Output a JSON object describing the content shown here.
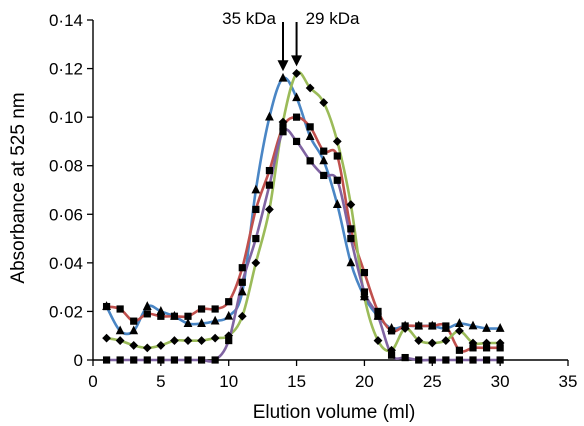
{
  "chart_data": {
    "type": "line",
    "xlabel": "Elution volume (ml)",
    "ylabel": "Absorbance at 525 nm",
    "xlim": [
      0,
      35
    ],
    "ylim": [
      0,
      0.14
    ],
    "x_ticks": [
      0,
      5,
      10,
      15,
      20,
      25,
      30,
      35
    ],
    "x_tick_labels": [
      "0",
      "5",
      "10",
      "15",
      "20",
      "25",
      "30",
      "35"
    ],
    "y_ticks": [
      0,
      0.02,
      0.04,
      0.06,
      0.08,
      0.1,
      0.12,
      0.14
    ],
    "y_tick_labels": [
      "0",
      "0·02",
      "0·04",
      "0·06",
      "0·08",
      "0·10",
      "0·12",
      "0·14"
    ],
    "grid": false,
    "annotations": [
      {
        "text": "35 kDa",
        "x": 14,
        "y": 0.116
      },
      {
        "text": "29 kDa",
        "x": 15,
        "y": 0.118
      }
    ],
    "series": [
      {
        "color": "#4a86c5",
        "marker": "triangle",
        "x": [
          1,
          2,
          3,
          4,
          5,
          6,
          7,
          8,
          9,
          10,
          11,
          12,
          13,
          14,
          15,
          16,
          17,
          18,
          19,
          20,
          21,
          22,
          23,
          24,
          25,
          26,
          27,
          28,
          29,
          30
        ],
        "y": [
          0.022,
          0.012,
          0.012,
          0.022,
          0.02,
          0.018,
          0.015,
          0.015,
          0.016,
          0.018,
          0.028,
          0.07,
          0.1,
          0.116,
          0.108,
          0.092,
          0.082,
          0.064,
          0.04,
          0.026,
          0.018,
          0.013,
          0.014,
          0.014,
          0.014,
          0.013,
          0.015,
          0.014,
          0.013,
          0.013
        ]
      },
      {
        "color": "#c0504d",
        "marker": "square",
        "x": [
          1,
          2,
          3,
          4,
          5,
          6,
          7,
          8,
          9,
          10,
          11,
          12,
          13,
          14,
          15,
          16,
          17,
          18,
          19,
          20,
          21,
          22,
          23,
          24,
          25,
          26,
          27,
          28,
          29,
          30
        ],
        "y": [
          0.022,
          0.021,
          0.016,
          0.019,
          0.018,
          0.018,
          0.018,
          0.021,
          0.021,
          0.024,
          0.038,
          0.062,
          0.078,
          0.096,
          0.1,
          0.096,
          0.086,
          0.084,
          0.054,
          0.036,
          0.02,
          0.012,
          0.014,
          0.014,
          0.014,
          0.014,
          0.004,
          0.005,
          0.005,
          0.005
        ]
      },
      {
        "color": "#9bbb59",
        "marker": "diamond",
        "x": [
          1,
          2,
          3,
          4,
          5,
          6,
          7,
          8,
          9,
          10,
          11,
          12,
          13,
          14,
          15,
          16,
          17,
          18,
          19,
          20,
          21,
          22,
          23,
          24,
          25,
          26,
          27,
          28,
          29,
          30
        ],
        "y": [
          0.009,
          0.008,
          0.006,
          0.005,
          0.006,
          0.008,
          0.008,
          0.008,
          0.009,
          0.01,
          0.018,
          0.04,
          0.062,
          0.098,
          0.118,
          0.112,
          0.106,
          0.09,
          0.064,
          0.026,
          0.008,
          0.004,
          0.013,
          0.008,
          0.007,
          0.008,
          0.012,
          0.007,
          0.007,
          0.007
        ]
      },
      {
        "color": "#8064a2",
        "marker": "square",
        "x": [
          1,
          2,
          3,
          4,
          5,
          6,
          7,
          8,
          9,
          10,
          11,
          12,
          13,
          14,
          15,
          16,
          17,
          18,
          19,
          20,
          21,
          22,
          23,
          24,
          25,
          26,
          27,
          28,
          29,
          30
        ],
        "y": [
          0.0,
          0.0,
          0.0,
          0.0,
          0.0,
          0.0,
          0.0,
          0.0,
          0.0,
          0.008,
          0.032,
          0.05,
          0.072,
          0.094,
          0.09,
          0.082,
          0.076,
          0.074,
          0.05,
          0.028,
          0.018,
          0.002,
          0.001,
          0.0,
          0.0,
          0.0,
          0.0,
          0.0,
          0.0,
          0.0
        ]
      }
    ]
  }
}
